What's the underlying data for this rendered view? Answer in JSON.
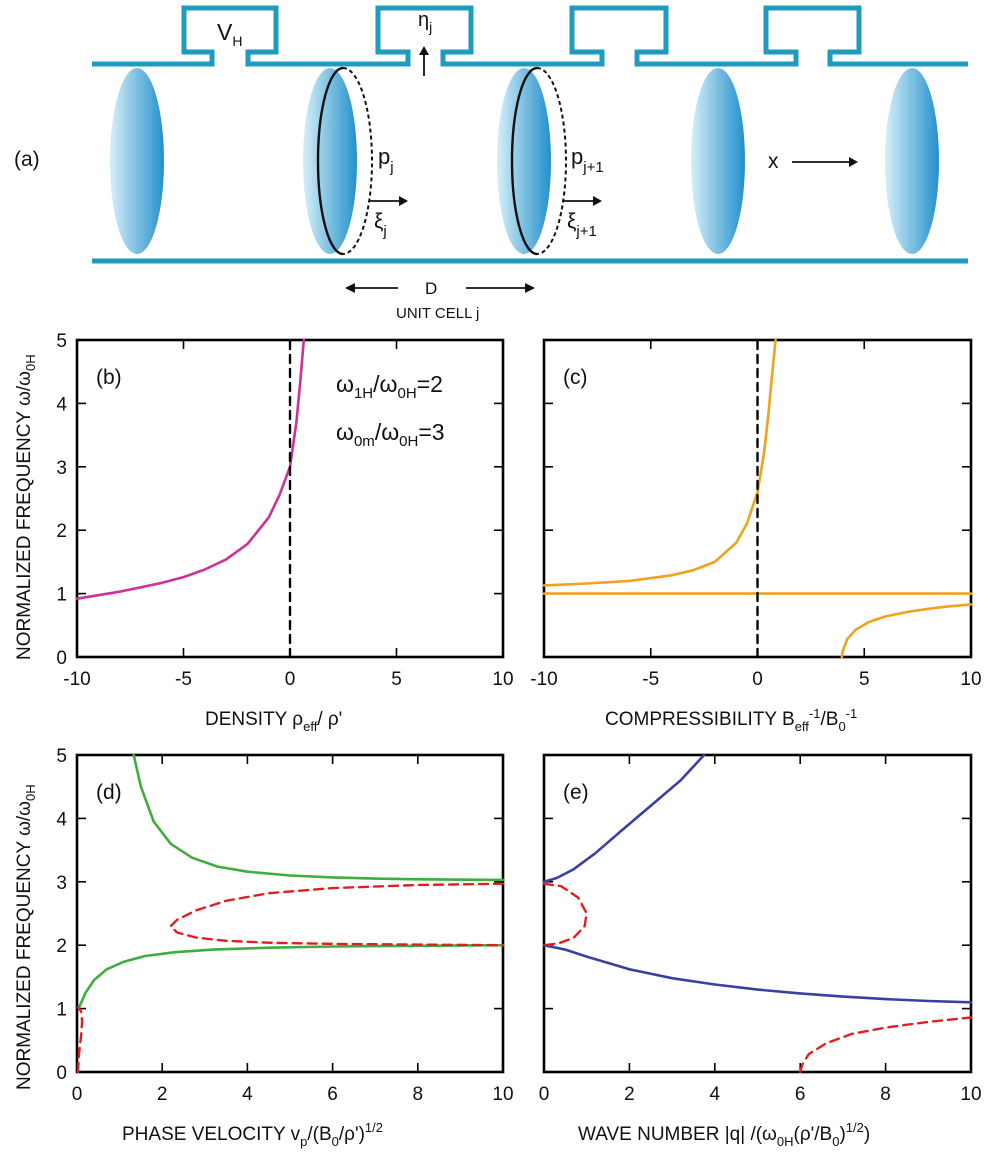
{
  "figure": {
    "panel_a": {
      "label": "(a)",
      "vh": "V",
      "vh_sub": "H",
      "eta": "η",
      "eta_sub": "j",
      "p1": "p",
      "p1_sub": "j",
      "p2": "p",
      "p2_sub": "j+1",
      "xi1": "ξ",
      "xi1_sub": "j",
      "xi2": "ξ",
      "xi2_sub": "j+1",
      "x_label": "x",
      "d_label": "D",
      "unit_cell": "UNIT CELL j",
      "colors": {
        "pipe": "#1e9bbf",
        "lens_light": "#cdeaf6",
        "lens_dark": "#2a9ad2"
      }
    },
    "ylabel": {
      "main": "NORMALIZED FREQUENCY ω/ω",
      "sub": "0H"
    },
    "annot_b1": {
      "main": "ω",
      "sub": "1H",
      "rest": "/ω",
      "sub2": "0H",
      "tail": "=2"
    },
    "annot_b2": {
      "main": "ω",
      "sub": "0m",
      "rest": "/ω",
      "sub2": "0H",
      "tail": "=3"
    },
    "xlabels": {
      "b": {
        "main": "DENSITY ρ",
        "sub": "eff",
        "rest": "/ ρ'"
      },
      "c": {
        "main": "COMPRESSIBILITY B",
        "sub": "eff",
        "sup": "-1",
        "rest": "/B",
        "sub2": "0",
        "sup2": "-1"
      },
      "d": {
        "main": "PHASE VELOCITY v",
        "sub": "p",
        "rest": "/(B",
        "sub2": "0",
        "rest2": "/ρ')",
        "sup": "1/2"
      },
      "e": {
        "main": "WAVE NUMBER |q| /(ω",
        "sub": "0H",
        "rest": "(ρ'/B",
        "sub2": "0",
        "rest2": ")",
        "sup": "1/2",
        "tail": ")"
      }
    },
    "colors": {
      "density": "#cc3399",
      "compress": "#f0a21e",
      "phase": "#3fae3f",
      "wave": "#3a40a0",
      "dashed_red": "#e02020"
    }
  },
  "chart_data": [
    {
      "panel": "(b)",
      "type": "line",
      "xlim": [
        -10,
        10
      ],
      "ylim": [
        0,
        5
      ],
      "xticks": [
        "-10",
        "-5",
        "0",
        "5",
        "10"
      ],
      "yticks": [
        "0",
        "1",
        "2",
        "3",
        "4",
        "5"
      ],
      "series": [
        {
          "style": "solid",
          "color": "#cc3399",
          "x": [
            -10,
            -8,
            -6,
            -5,
            -4,
            -3,
            -2,
            -1,
            -0.5,
            0,
            0.3,
            0.5,
            0.65
          ],
          "y": [
            0.92,
            1.03,
            1.17,
            1.26,
            1.38,
            1.54,
            1.78,
            2.2,
            2.55,
            3.0,
            3.7,
            4.4,
            5.0
          ]
        },
        {
          "style": "dashed",
          "color": "#000000",
          "x": [
            0,
            0
          ],
          "y": [
            0,
            5
          ]
        }
      ]
    },
    {
      "panel": "(c)",
      "type": "line",
      "xlim": [
        -10,
        10
      ],
      "ylim": [
        0,
        5
      ],
      "xticks": [
        "-10",
        "-5",
        "0",
        "5",
        "10"
      ],
      "yticks": [
        "0",
        "1",
        "2",
        "3",
        "4",
        "5"
      ],
      "series": [
        {
          "style": "solid",
          "color": "#f0a21e",
          "x": [
            -10,
            -8,
            -6,
            -4,
            -3,
            -2,
            -1,
            -0.5,
            0,
            0.3,
            0.5,
            0.7,
            0.85
          ],
          "y": [
            1.13,
            1.16,
            1.2,
            1.29,
            1.37,
            1.5,
            1.8,
            2.1,
            2.6,
            3.2,
            3.8,
            4.5,
            5.0
          ]
        },
        {
          "style": "solid",
          "color": "#f0a21e",
          "x": [
            -10,
            10
          ],
          "y": [
            1.0,
            1.0
          ]
        },
        {
          "style": "solid",
          "color": "#f0a21e",
          "x": [
            3.95,
            4.0,
            4.2,
            4.6,
            5.2,
            6,
            7,
            8,
            9,
            10
          ],
          "y": [
            0,
            0.1,
            0.28,
            0.43,
            0.55,
            0.64,
            0.71,
            0.76,
            0.8,
            0.83
          ]
        },
        {
          "style": "dashed",
          "color": "#000000",
          "x": [
            0,
            0
          ],
          "y": [
            0,
            5
          ]
        }
      ]
    },
    {
      "panel": "(d)",
      "type": "line",
      "xlim": [
        0,
        10
      ],
      "ylim": [
        0,
        5
      ],
      "xticks": [
        "0",
        "2",
        "4",
        "6",
        "8",
        "10"
      ],
      "yticks": [
        "0",
        "1",
        "2",
        "3",
        "4",
        "5"
      ],
      "series": [
        {
          "style": "solid",
          "color": "#3fae3f",
          "x": [
            1.33,
            1.5,
            1.8,
            2.2,
            2.7,
            3.3,
            4,
            5,
            6,
            7,
            8,
            10
          ],
          "y": [
            5.0,
            4.5,
            3.95,
            3.6,
            3.38,
            3.24,
            3.16,
            3.1,
            3.07,
            3.05,
            3.04,
            3.03
          ]
        },
        {
          "style": "solid",
          "color": "#3fae3f",
          "x": [
            0.05,
            0.2,
            0.4,
            0.7,
            1.1,
            1.6,
            2.3,
            3.2,
            4.5,
            6,
            8,
            10
          ],
          "y": [
            1.02,
            1.25,
            1.45,
            1.62,
            1.74,
            1.83,
            1.89,
            1.93,
            1.96,
            1.98,
            1.99,
            2.0
          ]
        },
        {
          "style": "dashed",
          "color": "#e02020",
          "x": [
            10,
            8,
            6,
            4.5,
            3.5,
            2.8,
            2.35,
            2.2,
            2.35,
            2.8,
            3.5,
            4.5,
            6,
            8,
            10
          ],
          "y": [
            2.97,
            2.95,
            2.9,
            2.82,
            2.7,
            2.55,
            2.4,
            2.3,
            2.2,
            2.12,
            2.07,
            2.04,
            2.02,
            2.01,
            2.0
          ]
        },
        {
          "style": "dashed",
          "color": "#e02020",
          "x": [
            0.02,
            0.05,
            0.1,
            0.12,
            0.1,
            0.05,
            0.02
          ],
          "y": [
            0,
            0.3,
            0.6,
            0.8,
            0.95,
            1.0,
            1.02
          ]
        }
      ]
    },
    {
      "panel": "(e)",
      "type": "line",
      "xlim": [
        0,
        10
      ],
      "ylim": [
        0,
        5
      ],
      "xticks": [
        "0",
        "2",
        "4",
        "6",
        "8",
        "10"
      ],
      "yticks": [
        "0",
        "1",
        "2",
        "3",
        "4",
        "5"
      ],
      "series": [
        {
          "style": "solid",
          "color": "#3a40a0",
          "x": [
            0,
            0.3,
            0.7,
            1.2,
            1.8,
            2.5,
            3.2,
            3.75
          ],
          "y": [
            3.0,
            3.06,
            3.2,
            3.45,
            3.8,
            4.2,
            4.6,
            5.0
          ]
        },
        {
          "style": "solid",
          "color": "#3a40a0",
          "x": [
            0,
            0.5,
            1,
            2,
            3,
            4,
            5,
            6,
            7,
            8,
            9,
            10
          ],
          "y": [
            2.0,
            1.93,
            1.82,
            1.62,
            1.48,
            1.38,
            1.3,
            1.24,
            1.19,
            1.15,
            1.12,
            1.1
          ]
        },
        {
          "style": "dashed",
          "color": "#e02020",
          "x": [
            0,
            0.4,
            0.8,
            1.0,
            0.95,
            0.7,
            0.35,
            0
          ],
          "y": [
            2.97,
            2.93,
            2.75,
            2.5,
            2.3,
            2.12,
            2.03,
            2.0
          ]
        },
        {
          "style": "dashed",
          "color": "#e02020",
          "x": [
            6.0,
            6.05,
            6.2,
            6.6,
            7.2,
            8,
            9,
            10
          ],
          "y": [
            0,
            0.12,
            0.28,
            0.45,
            0.6,
            0.7,
            0.79,
            0.86
          ]
        }
      ]
    }
  ]
}
